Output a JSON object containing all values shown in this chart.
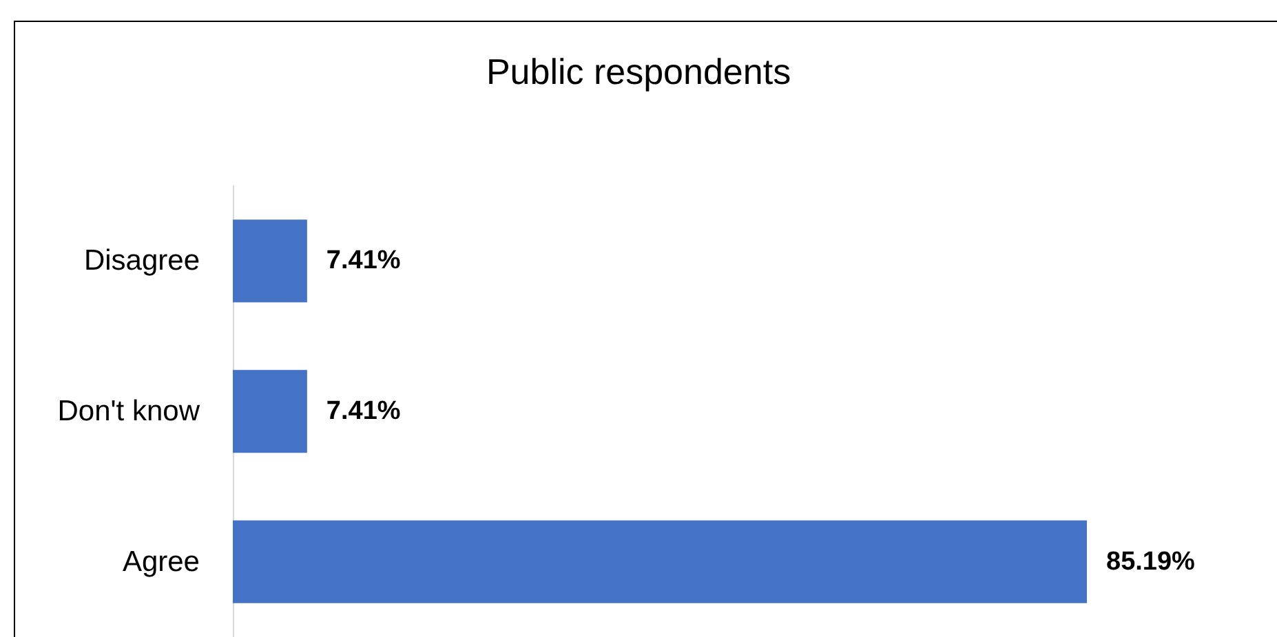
{
  "chart_data": {
    "type": "bar",
    "orientation": "horizontal",
    "title": "Public respondents",
    "categories": [
      "Disagree",
      "Don't know",
      "Agree"
    ],
    "values": [
      7.41,
      7.41,
      85.19
    ],
    "value_labels": [
      "7.41%",
      "7.41%",
      "85.19%"
    ],
    "color": "#4472c4"
  }
}
